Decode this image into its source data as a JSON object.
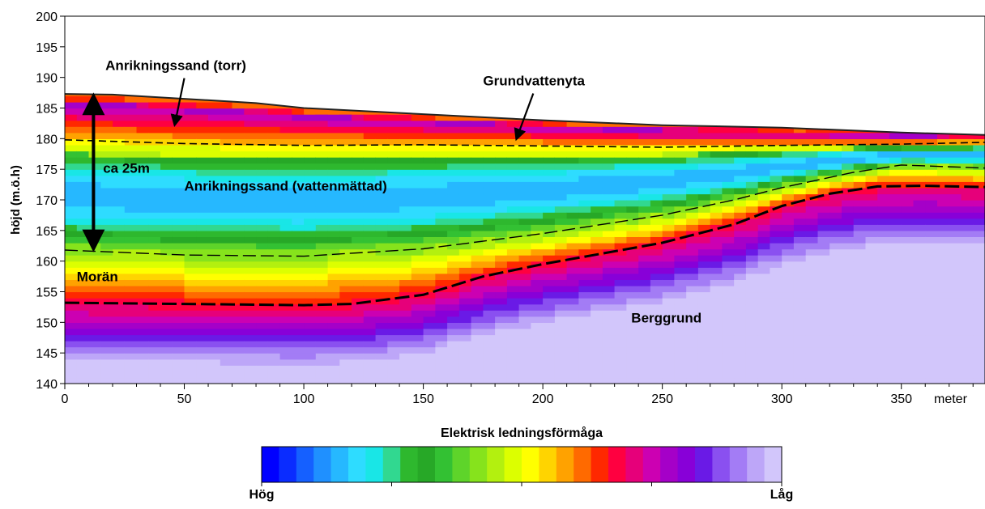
{
  "chart_data": {
    "type": "heatmap",
    "title": "",
    "xlabel": "",
    "x_unit_label": "meter",
    "ylabel": "höjd (m.ö.h)",
    "xlim": [
      0,
      385
    ],
    "ylim": [
      140,
      200
    ],
    "x_ticks": [
      0,
      50,
      100,
      150,
      200,
      250,
      300,
      350
    ],
    "y_ticks": [
      140,
      145,
      150,
      155,
      160,
      165,
      170,
      175,
      180,
      185,
      190,
      195,
      200
    ],
    "grid": false,
    "surface_profile": [
      [
        0,
        187.3
      ],
      [
        20,
        187.2
      ],
      [
        50,
        186.5
      ],
      [
        80,
        185.8
      ],
      [
        100,
        185.0
      ],
      [
        150,
        184.0
      ],
      [
        200,
        183.0
      ],
      [
        250,
        182.2
      ],
      [
        300,
        181.8
      ],
      [
        350,
        181.0
      ],
      [
        385,
        180.6
      ]
    ],
    "groundwater_line": [
      [
        0,
        179.8
      ],
      [
        50,
        179.2
      ],
      [
        100,
        178.9
      ],
      [
        150,
        179.0
      ],
      [
        200,
        178.8
      ],
      [
        250,
        178.6
      ],
      [
        300,
        178.9
      ],
      [
        350,
        179.1
      ],
      [
        385,
        179.4
      ]
    ],
    "sand_moraine_boundary": [
      [
        0,
        161.8
      ],
      [
        50,
        161.0
      ],
      [
        100,
        160.8
      ],
      [
        150,
        162.0
      ],
      [
        200,
        164.5
      ],
      [
        250,
        167.5
      ],
      [
        280,
        170.0
      ],
      [
        300,
        172.0
      ],
      [
        330,
        174.5
      ],
      [
        350,
        175.7
      ],
      [
        385,
        175.2
      ]
    ],
    "moraine_bedrock_boundary": [
      [
        0,
        153.2
      ],
      [
        50,
        153.0
      ],
      [
        100,
        152.8
      ],
      [
        120,
        153.0
      ],
      [
        150,
        154.5
      ],
      [
        175,
        157.5
      ],
      [
        200,
        159.5
      ],
      [
        250,
        163.0
      ],
      [
        280,
        166.0
      ],
      [
        300,
        169.0
      ],
      [
        320,
        171.0
      ],
      [
        340,
        172.2
      ],
      [
        360,
        172.3
      ],
      [
        385,
        172.1
      ]
    ],
    "thickness_arrow": {
      "x": 12,
      "y_from": 186.8,
      "y_to": 162.2,
      "label": "ca 25m"
    },
    "annotations": [
      {
        "text": "Anrikningssand (torr)",
        "x": 17,
        "y": 191.2,
        "arrow_to": [
          46,
          182.3
        ]
      },
      {
        "text": "Grundvattenyta",
        "x": 175,
        "y": 188.7,
        "arrow_to": [
          189,
          180.0
        ]
      },
      {
        "text": "Anrikningssand (vattenmättad)",
        "x": 50,
        "y": 171.5
      },
      {
        "text": "Morän",
        "x": 5,
        "y": 156.7
      },
      {
        "text": "Berggrund",
        "x": 237,
        "y": 150.0
      }
    ],
    "colorbar": {
      "title": "Elektrisk ledningsförmåga",
      "low_label": "Hög",
      "high_label": "Låg",
      "colors": [
        "#0000ff",
        "#0a2cff",
        "#1560ff",
        "#1f90ff",
        "#26b8ff",
        "#2edcff",
        "#19e6e6",
        "#31d890",
        "#2eb82e",
        "#27a827",
        "#33c133",
        "#5ed42a",
        "#86e31c",
        "#b3f00f",
        "#dcff00",
        "#ffff00",
        "#ffd400",
        "#ffa200",
        "#ff6a00",
        "#ff2800",
        "#ff0040",
        "#e6007a",
        "#cc00b2",
        "#a500c8",
        "#8800d8",
        "#6a1ae6",
        "#8a50f0",
        "#a37cf5",
        "#bda6f8",
        "#d2c6fb"
      ]
    }
  }
}
